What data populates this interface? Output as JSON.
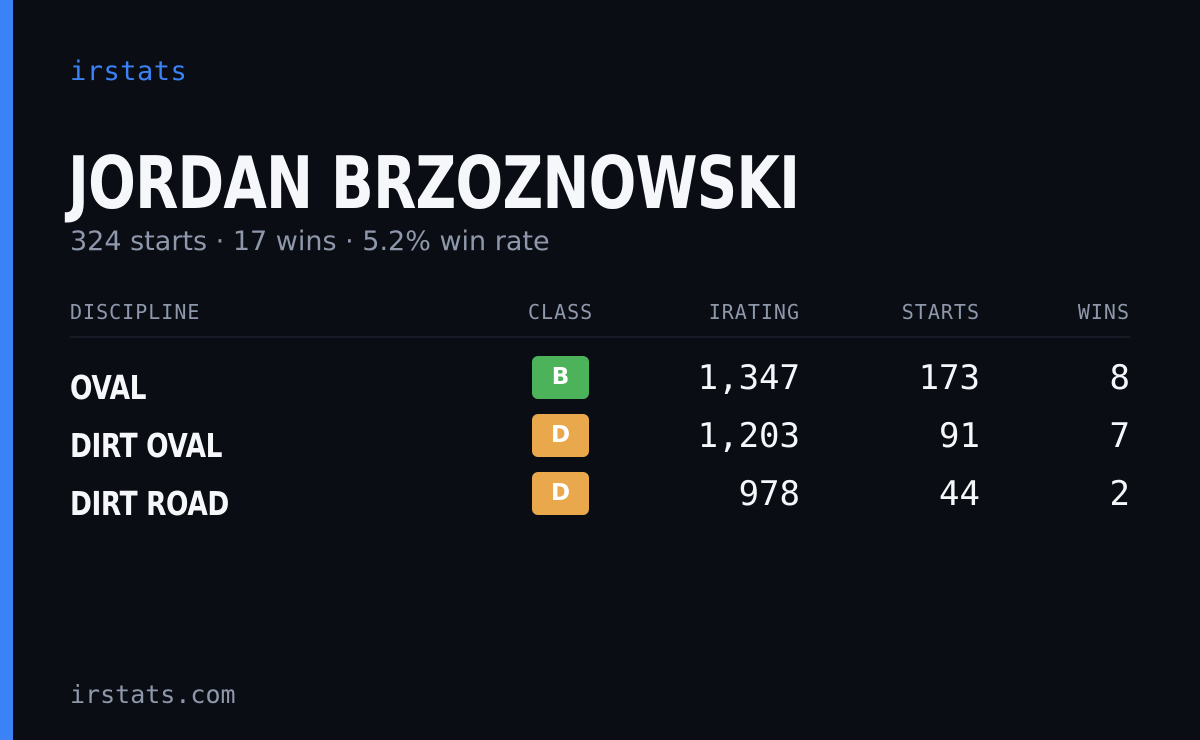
{
  "brand": "irstats",
  "driver": {
    "name": "JORDAN BRZOZNOWSKI",
    "summary": "324 starts · 17 wins · 5.2% win rate"
  },
  "table": {
    "headers": {
      "discipline": "DISCIPLINE",
      "class": "CLASS",
      "irating": "IRATING",
      "starts": "STARTS",
      "wins": "WINS"
    },
    "rows": [
      {
        "discipline": "OVAL",
        "class": "B",
        "class_color": "#4cb35a",
        "irating": "1,347",
        "starts": "173",
        "wins": "8"
      },
      {
        "discipline": "DIRT OVAL",
        "class": "D",
        "class_color": "#e9a84c",
        "irating": "1,203",
        "starts": "91",
        "wins": "7"
      },
      {
        "discipline": "DIRT ROAD",
        "class": "D",
        "class_color": "#e9a84c",
        "irating": "978",
        "starts": "44",
        "wins": "2"
      }
    ]
  },
  "footer": "irstats.com",
  "colors": {
    "accent": "#3b82f6",
    "background": "#0a0d14"
  }
}
